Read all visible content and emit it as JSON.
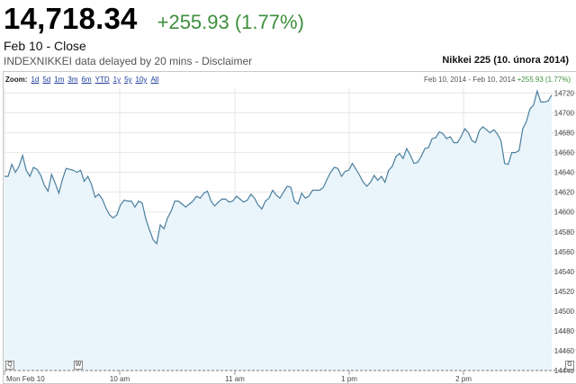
{
  "quote": {
    "price": "14,718.34",
    "change": "+255.93 (1.77%)",
    "close_label": "Feb 10 - Close",
    "delay_text": "INDEXNIKKEI data delayed by 20 mins - ",
    "disclaimer_link": "Disclaimer",
    "index_name": "Nikkei 225 (10. února 2014)"
  },
  "zoom": {
    "label": "Zoom:",
    "links": [
      "1d",
      "5d",
      "1m",
      "3m",
      "6m",
      "YTD",
      "1y",
      "5y",
      "10y",
      "All"
    ]
  },
  "range_info": {
    "dates": "Feb 10, 2014 - Feb 10, 2014",
    "change": "+255.93 (1.77%)"
  },
  "markers": {
    "left": "Q",
    "right": "G",
    "news": "W"
  },
  "colors": {
    "line": "#4a7f9e",
    "fill": "#eaf4fb",
    "positive": "#3d8f3d"
  },
  "chart_data": {
    "type": "area",
    "x_labels": [
      "Mon Feb 10",
      "10 am",
      "11 am",
      "1 pm",
      "2 pm"
    ],
    "y_ticks": [
      14440,
      14460,
      14480,
      14500,
      14520,
      14540,
      14560,
      14580,
      14600,
      14620,
      14640,
      14660,
      14680,
      14700,
      14720
    ],
    "ylim": [
      14440,
      14725
    ],
    "grid": true,
    "values": [
      14636,
      14636,
      14648,
      14640,
      14646,
      14657,
      14642,
      14636,
      14645,
      14643,
      14637,
      14627,
      14621,
      14638,
      14629,
      14619,
      14633,
      14644,
      14643,
      14642,
      14640,
      14642,
      14631,
      14636,
      14628,
      14615,
      14618,
      14613,
      14604,
      14597,
      14594,
      14597,
      14607,
      14612,
      14611,
      14611,
      14605,
      14611,
      14609,
      14593,
      14582,
      14572,
      14568,
      14587,
      14583,
      14594,
      14601,
      14611,
      14611,
      14608,
      14605,
      14608,
      14611,
      14616,
      14614,
      14619,
      14621,
      14611,
      14606,
      14610,
      14613,
      14613,
      14610,
      14611,
      14616,
      14613,
      14610,
      14612,
      14618,
      14614,
      14607,
      14603,
      14611,
      14614,
      14622,
      14617,
      14614,
      14620,
      14626,
      14625,
      14611,
      14608,
      14619,
      14614,
      14616,
      14622,
      14622,
      14622,
      14625,
      14633,
      14640,
      14645,
      14644,
      14636,
      14641,
      14642,
      14649,
      14643,
      14637,
      14630,
      14626,
      14630,
      14637,
      14632,
      14636,
      14630,
      14642,
      14646,
      14656,
      14659,
      14654,
      14664,
      14657,
      14649,
      14650,
      14656,
      14664,
      14665,
      14674,
      14675,
      14681,
      14679,
      14674,
      14676,
      14670,
      14670,
      14676,
      14684,
      14680,
      14672,
      14670,
      14682,
      14686,
      14683,
      14680,
      14683,
      14679,
      14672,
      14649,
      14648,
      14660,
      14660,
      14662,
      14684,
      14691,
      14704,
      14708,
      14722,
      14711,
      14711,
      14712,
      14718
    ]
  }
}
